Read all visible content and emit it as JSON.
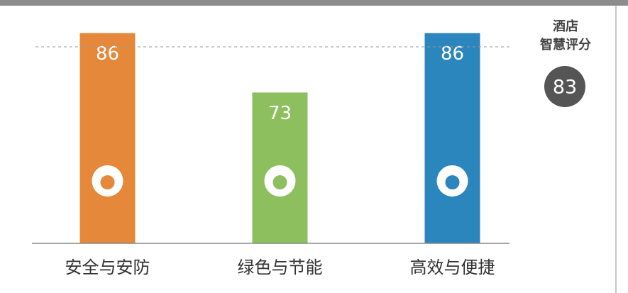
{
  "chart_data": {
    "type": "bar",
    "categories": [
      "安全与安防",
      "绿色与节能",
      "高效与便捷"
    ],
    "series": [
      {
        "values": [
          86,
          73,
          86
        ],
        "colors": [
          "#e5883a",
          "#8dbf5e",
          "#2a86bd"
        ]
      }
    ],
    "ylim": [
      40,
      92
    ],
    "reference": {
      "label": [
        "酒店",
        "智慧评分"
      ],
      "value": 83
    }
  }
}
